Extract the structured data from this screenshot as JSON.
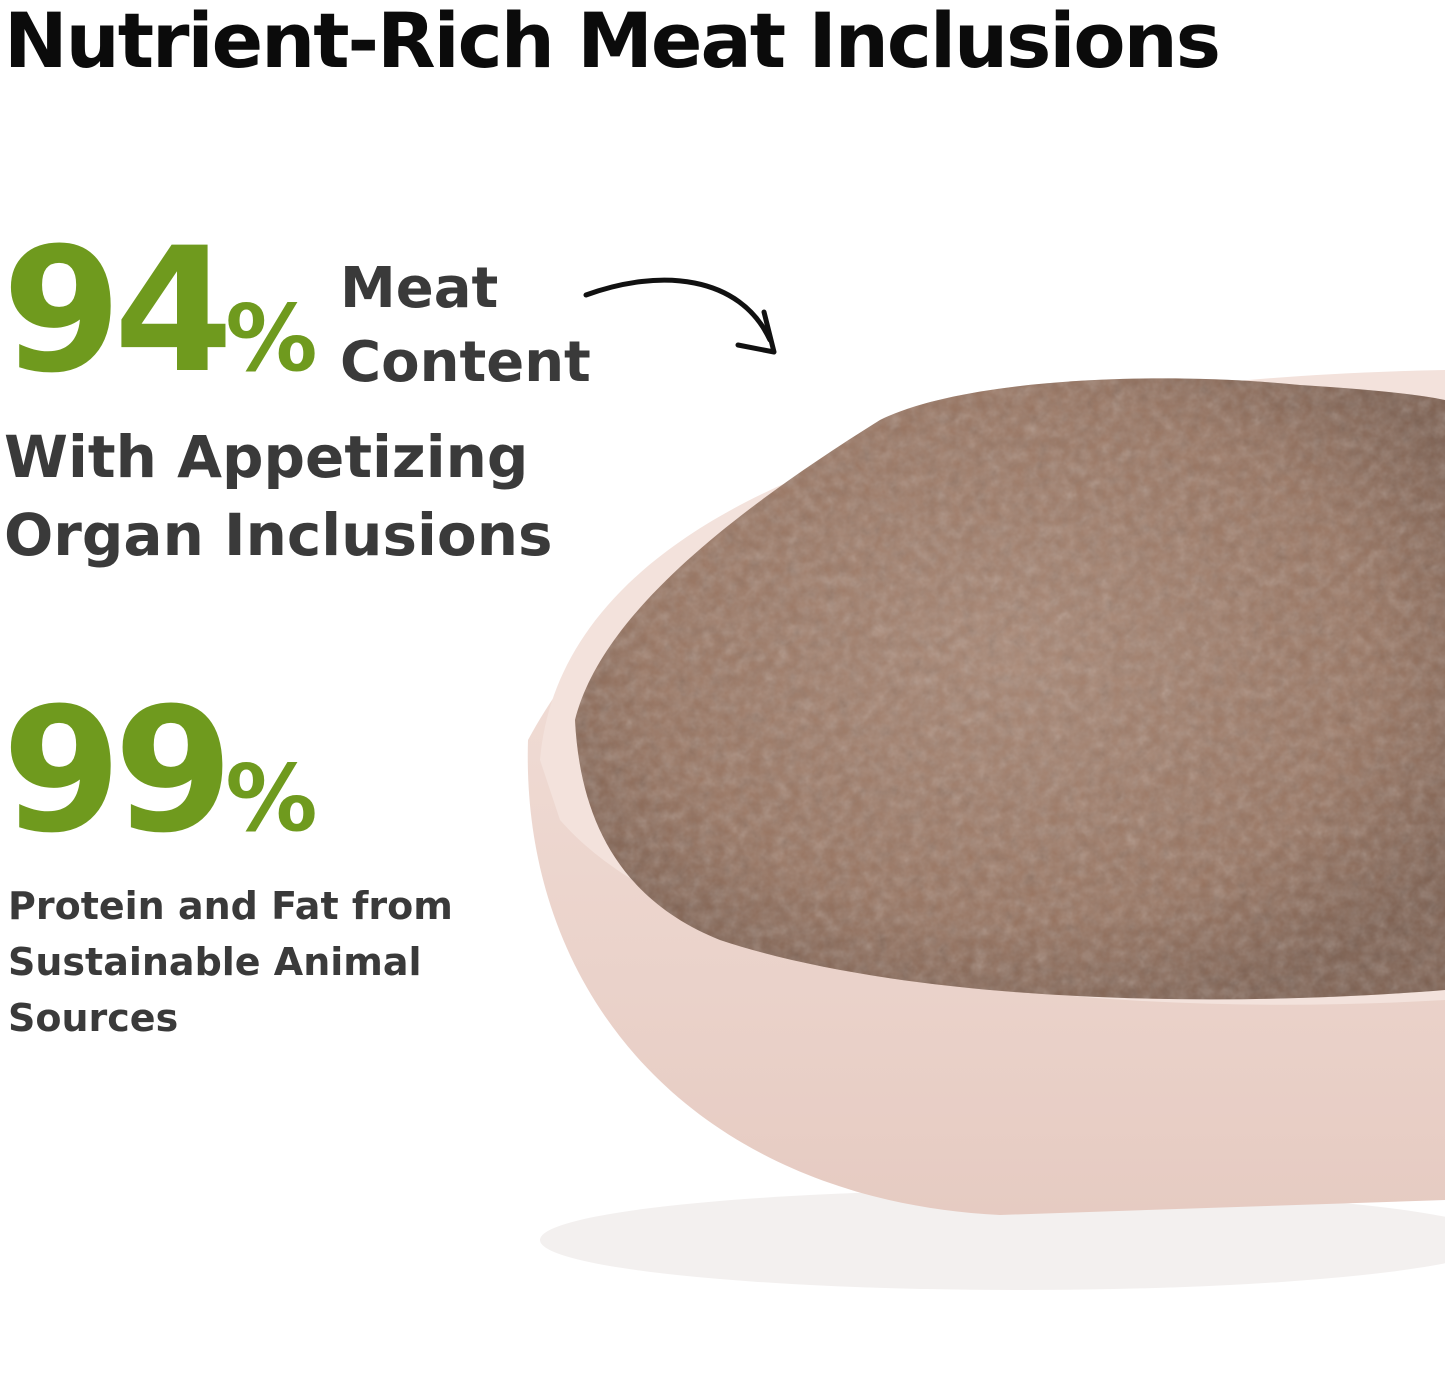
{
  "title": "Nutrient-Rich Meat Inclusions",
  "stat1": {
    "number": "94",
    "unit": "%",
    "label_line1": "Meat",
    "label_line2": "Content",
    "sub_line1": "With Appetizing",
    "sub_line2": "Organ Inclusions"
  },
  "stat2": {
    "number": "99",
    "unit": "%",
    "sub_line1": "Protein and Fat from",
    "sub_line2": "Sustainable Animal",
    "sub_line3": "Sources"
  },
  "colors": {
    "accent": "#6f9a1e",
    "text": "#3a3a3a",
    "title": "#0b0b0b",
    "bowl": "#f1ddd6",
    "food": "#9c7a66"
  }
}
